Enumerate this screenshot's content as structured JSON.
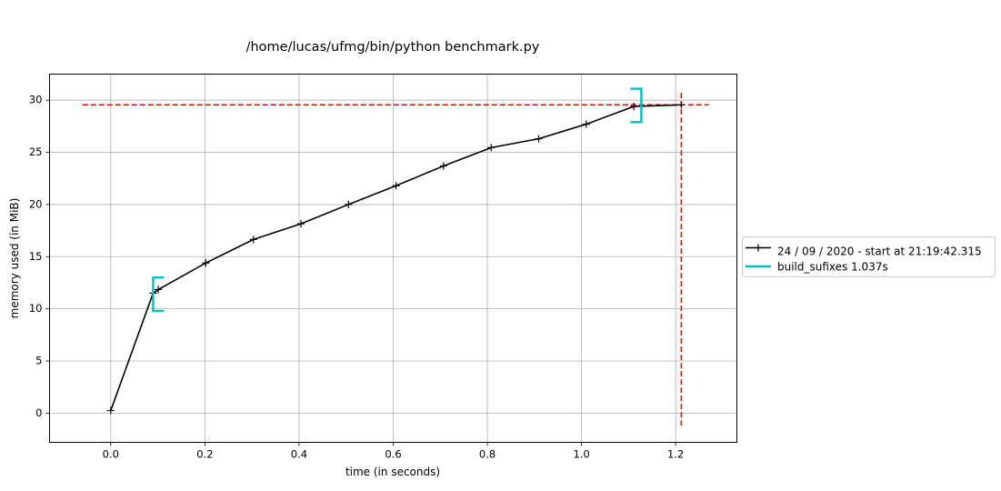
{
  "chart_data": {
    "type": "line",
    "title": "/home/lucas/ufmg/bin/python benchmark.py",
    "xlabel": "time (in seconds)",
    "ylabel": "memory used (in MiB)",
    "xlim": [
      -0.13,
      1.33
    ],
    "ylim": [
      -2.8,
      32.5
    ],
    "xticks": [
      0.0,
      0.2,
      0.4,
      0.6,
      0.8,
      1.0,
      1.2
    ],
    "xtick_labels": [
      "0.0",
      "0.2",
      "0.4",
      "0.6",
      "0.8",
      "1.0",
      "1.2"
    ],
    "yticks": [
      0,
      5,
      10,
      15,
      20,
      25,
      30
    ],
    "ytick_labels": [
      "0",
      "5",
      "10",
      "15",
      "20",
      "25",
      "30"
    ],
    "grid": true,
    "series": [
      {
        "name": "24 / 09 / 2020 - start at 21:19:42.315",
        "color": "#000000",
        "marker": "+",
        "x": [
          0.0,
          0.09,
          0.101,
          0.202,
          0.303,
          0.404,
          0.505,
          0.606,
          0.707,
          0.808,
          0.909,
          1.01,
          1.111,
          1.212
        ],
        "y": [
          0.25,
          11.5,
          11.85,
          14.4,
          16.65,
          18.15,
          20.0,
          21.8,
          23.7,
          25.45,
          26.3,
          27.7,
          29.4,
          29.55
        ]
      }
    ],
    "function_brackets": {
      "name": "build_sufixes 1.037s",
      "color": "#00bfbf",
      "start": {
        "x": 0.09,
        "ymin": 9.8,
        "ymax": 13.0
      },
      "end": {
        "x": 1.127,
        "ymin": 27.9,
        "ymax": 31.1
      }
    },
    "peak_lines": {
      "color": "#ff0000",
      "horizontal": {
        "y": 29.55,
        "xmin": -0.06,
        "xmax": 1.27
      },
      "vertical": {
        "x": 1.212,
        "ymin": -1.2,
        "ymax": 30.7
      }
    },
    "legend": {
      "placement": "outside-right",
      "entries": [
        {
          "label": "24 / 09 / 2020 - start at 21:19:42.315",
          "color": "#000000",
          "marker": "+"
        },
        {
          "label": "build_sufixes 1.037s",
          "color": "#00bfbf",
          "marker": ""
        }
      ]
    }
  }
}
